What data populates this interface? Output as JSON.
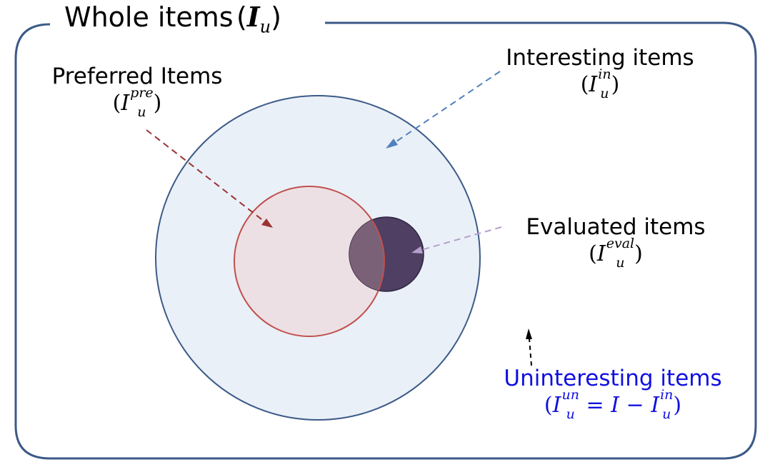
{
  "title": {
    "text": "Whole items",
    "symbol": "I",
    "sub": "u"
  },
  "labels": {
    "interesting": {
      "text": "Interesting items",
      "symbol": "I",
      "sup": "in",
      "sub": "u"
    },
    "preferred": {
      "text": "Preferred Items",
      "symbol": "I",
      "sup": "pre",
      "sub": "u"
    },
    "evaluated": {
      "text": "Evaluated items",
      "symbol": "I",
      "sup": "eval",
      "sub": "u"
    },
    "uninteresting": {
      "text": "Uninteresting items",
      "symbol": "I",
      "sup": "un",
      "sub": "u",
      "eq": "= I −",
      "sup2": "in",
      "sub2": "u"
    }
  },
  "colors": {
    "frame": "#3c5a88",
    "interesting_fill": "#eaf0f8",
    "interesting_stroke": "#3c5a88",
    "preferred_fill": "#ede0e4",
    "preferred_stroke": "#c0504d",
    "evaluated_fill": "#4e3f63",
    "overlap_fill": "#7a6178",
    "arrow_interesting": "#4f81bd",
    "arrow_preferred": "#9b3232",
    "arrow_evaluated": "#b4a0cc",
    "arrow_uninteresting": "#000000",
    "uninteresting_text": "#1010e0"
  }
}
